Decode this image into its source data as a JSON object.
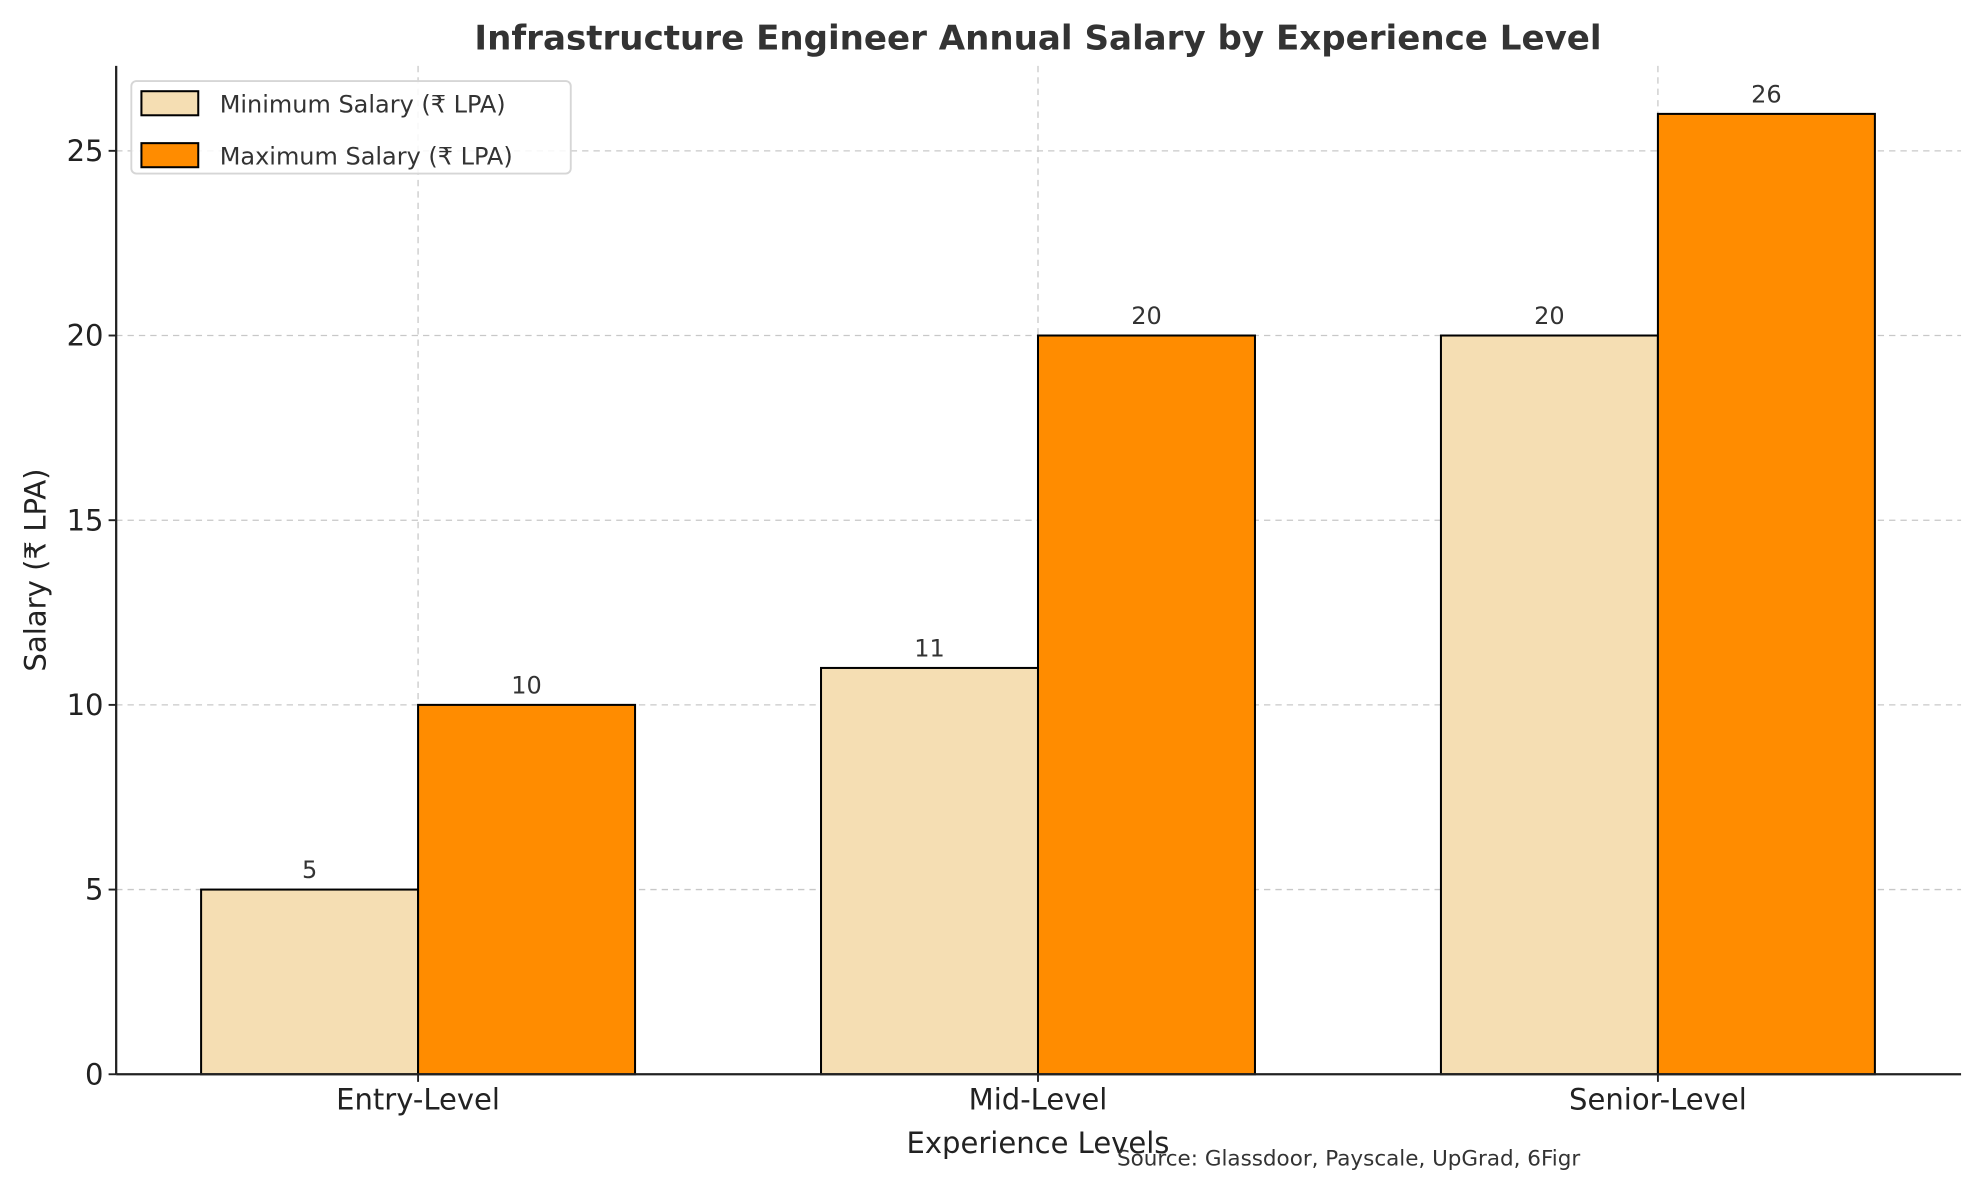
{
  "chart_data": {
    "type": "bar",
    "title": "Infrastructure Engineer Annual Salary by Experience Level",
    "xlabel": "Experience Levels",
    "ylabel": "Salary (₹ LPA)",
    "categories": [
      "Entry-Level",
      "Mid-Level",
      "Senior-Level"
    ],
    "series": [
      {
        "name": "Minimum Salary (₹ LPA)",
        "values": [
          5,
          11,
          20
        ],
        "color": "#F5DEB3"
      },
      {
        "name": "Maximum Salary (₹ LPA)",
        "values": [
          10,
          20,
          26
        ],
        "color": "#FF8C00"
      }
    ],
    "ylim": [
      0,
      27.3
    ],
    "yticks": [
      0,
      5,
      10,
      15,
      20,
      25
    ],
    "grid": true,
    "legend_position": "top-left",
    "annotation": "Source: Glassdoor, Payscale, UpGrad, 6Figr"
  }
}
